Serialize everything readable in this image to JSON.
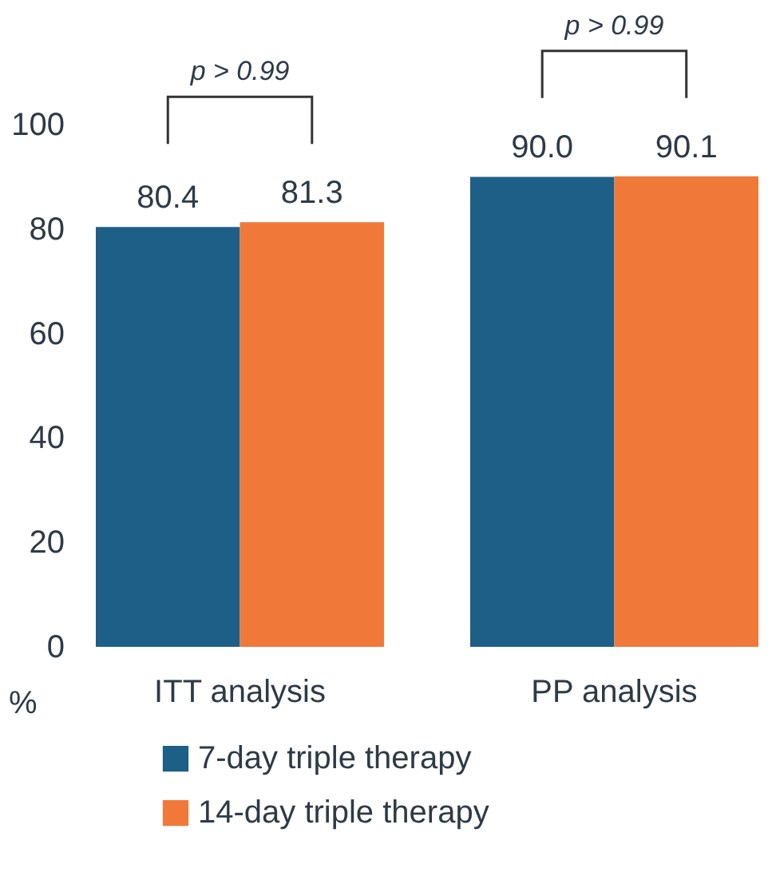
{
  "chart_data": {
    "type": "bar",
    "ylabel": "%",
    "categories": [
      "ITT analysis",
      "PP analysis"
    ],
    "series": [
      {
        "name": "7-day triple therapy",
        "color": "#1d5f86",
        "values": [
          80.4,
          90.0
        ],
        "value_labels": [
          "80.4",
          "90.0"
        ]
      },
      {
        "name": "14-day triple therapy",
        "color": "#f0793a",
        "values": [
          81.3,
          90.1
        ],
        "value_labels": [
          "81.3",
          "90.1"
        ]
      }
    ],
    "ylim": [
      0,
      100
    ],
    "yticks": [
      0,
      20,
      40,
      60,
      80,
      100
    ],
    "grid": false,
    "legend": "bottom",
    "annotations": [
      "p > 0.99",
      "p > 0.99"
    ]
  }
}
